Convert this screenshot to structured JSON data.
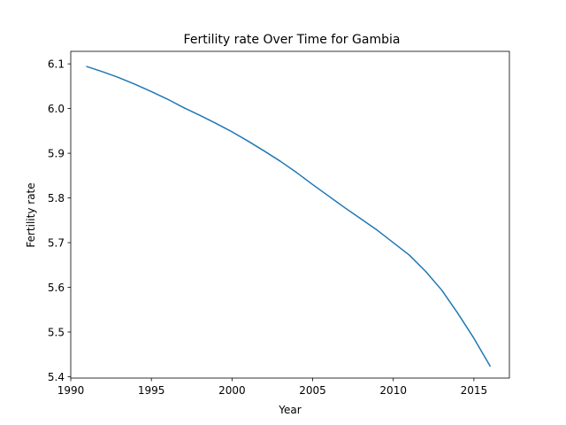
{
  "chart_data": {
    "type": "line",
    "title": "Fertility rate Over Time for Gambia",
    "xlabel": "Year",
    "ylabel": "Fertility rate",
    "xlim": [
      1990,
      2017.2
    ],
    "ylim": [
      5.397,
      6.128
    ],
    "xticks": [
      1990,
      1995,
      2000,
      2005,
      2010,
      2015
    ],
    "yticks": [
      5.4,
      5.5,
      5.6,
      5.7,
      5.8,
      5.9,
      6.0,
      6.1
    ],
    "ytick_labels": [
      "5.4",
      "5.5",
      "5.6",
      "5.7",
      "5.8",
      "5.9",
      "6.0",
      "6.1"
    ],
    "grid": false,
    "series": [
      {
        "color": "#1f77b4",
        "x": [
          1991,
          1992,
          1993,
          1994,
          1995,
          1996,
          1997,
          1998,
          1999,
          2000,
          2001,
          2002,
          2003,
          2004,
          2005,
          2006,
          2007,
          2008,
          2009,
          2010,
          2011,
          2012,
          2013,
          2014,
          2015,
          2016
        ],
        "y": [
          6.094,
          6.082,
          6.069,
          6.054,
          6.038,
          6.021,
          6.002,
          5.985,
          5.967,
          5.948,
          5.927,
          5.905,
          5.882,
          5.857,
          5.83,
          5.804,
          5.778,
          5.753,
          5.728,
          5.7,
          5.672,
          5.636,
          5.594,
          5.542,
          5.486,
          5.424
        ]
      }
    ]
  }
}
